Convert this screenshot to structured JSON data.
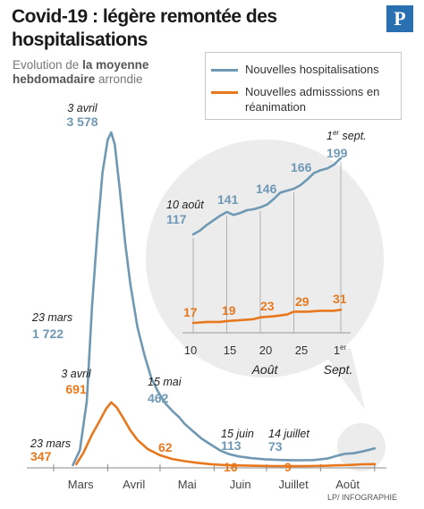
{
  "header": {
    "title": "Covid-19 : légère remontée des hospitalisations",
    "subtitle_prefix": "Evolution de ",
    "subtitle_bold": "la moyenne hebdomadaire",
    "subtitle_suffix": " arrondie",
    "logo": "P",
    "credit": "LP/ INFOGRAPHIE"
  },
  "colors": {
    "hosp": "#6e98b3",
    "rea": "#e8781e",
    "inset_bg": "#ececec",
    "axis": "#555555"
  },
  "legend": {
    "hosp": "Nouvelles hospitalisations",
    "rea": "Nouvelles admisssions en réanimation"
  },
  "chart_data": [
    {
      "type": "line",
      "x_tick_labels": [
        "Mars",
        "Avril",
        "Mai",
        "Juin",
        "Juillet",
        "Août"
      ],
      "ylim": [
        0,
        3700
      ],
      "series": [
        {
          "name": "Nouvelles hospitalisations",
          "x": [
            "2020-03-12",
            "2020-03-16",
            "2020-03-20",
            "2020-03-23",
            "2020-03-26",
            "2020-03-29",
            "2020-04-01",
            "2020-04-03",
            "2020-04-05",
            "2020-04-08",
            "2020-04-11",
            "2020-04-14",
            "2020-04-18",
            "2020-04-22",
            "2020-04-26",
            "2020-04-30",
            "2020-05-04",
            "2020-05-08",
            "2020-05-12",
            "2020-05-15",
            "2020-05-20",
            "2020-05-25",
            "2020-05-30",
            "2020-06-05",
            "2020-06-10",
            "2020-06-15",
            "2020-06-22",
            "2020-06-30",
            "2020-07-07",
            "2020-07-14",
            "2020-07-21",
            "2020-07-28",
            "2020-08-05",
            "2020-08-10",
            "2020-08-15",
            "2020-08-20",
            "2020-08-25",
            "2020-09-01"
          ],
          "values": [
            20,
            180,
            700,
            1722,
            2500,
            3150,
            3500,
            3578,
            3450,
            2950,
            2400,
            1950,
            1500,
            1200,
            950,
            800,
            680,
            600,
            530,
            462,
            380,
            300,
            240,
            170,
            135,
            113,
            95,
            82,
            76,
            73,
            72,
            74,
            90,
            117,
            141,
            146,
            166,
            199
          ]
        },
        {
          "name": "Nouvelles admisssions en réanimation",
          "x": [
            "2020-03-14",
            "2020-03-18",
            "2020-03-23",
            "2020-03-27",
            "2020-03-31",
            "2020-04-03",
            "2020-04-06",
            "2020-04-10",
            "2020-04-14",
            "2020-04-18",
            "2020-04-24",
            "2020-05-01",
            "2020-05-08",
            "2020-05-15",
            "2020-05-22",
            "2020-05-30",
            "2020-06-07",
            "2020-06-15",
            "2020-06-25",
            "2020-07-05",
            "2020-07-14",
            "2020-07-25",
            "2020-08-05",
            "2020-08-10",
            "2020-08-15",
            "2020-08-20",
            "2020-08-25",
            "2020-09-01"
          ],
          "values": [
            30,
            150,
            347,
            480,
            620,
            691,
            640,
            520,
            390,
            290,
            190,
            125,
            85,
            62,
            45,
            30,
            20,
            16,
            12,
            10,
            9,
            10,
            13,
            17,
            19,
            23,
            29,
            31
          ]
        }
      ],
      "annotations": [
        {
          "date": "3 avril",
          "value": "3 578",
          "series": "hosp"
        },
        {
          "date": "23 mars",
          "value": "1 722",
          "series": "hosp"
        },
        {
          "date": "15 mai",
          "value": "462",
          "series": "hosp"
        },
        {
          "date": "15 juin",
          "value": "113",
          "series": "hosp"
        },
        {
          "date": "14 juillet",
          "value": "73",
          "series": "hosp"
        },
        {
          "date": "3 avril",
          "value": "691",
          "series": "rea"
        },
        {
          "date": "23 mars",
          "value": "347",
          "series": "rea"
        },
        {
          "value": "62",
          "series": "rea"
        },
        {
          "value": "16",
          "series": "rea"
        },
        {
          "value": "9",
          "series": "rea"
        }
      ]
    },
    {
      "type": "line",
      "x_tick_labels": [
        "10",
        "15",
        "20",
        "25",
        "1er"
      ],
      "x_axis_labels": [
        "Août",
        "Sept."
      ],
      "series": [
        {
          "name": "Nouvelles hospitalisations",
          "x": [
            "2020-08-10",
            "2020-08-11",
            "2020-08-12",
            "2020-08-13",
            "2020-08-14",
            "2020-08-15",
            "2020-08-16",
            "2020-08-17",
            "2020-08-18",
            "2020-08-19",
            "2020-08-20",
            "2020-08-21",
            "2020-08-22",
            "2020-08-23",
            "2020-08-24",
            "2020-08-25",
            "2020-08-26",
            "2020-08-27",
            "2020-08-28",
            "2020-08-29",
            "2020-08-30",
            "2020-08-31",
            "2020-09-01"
          ],
          "values": [
            117,
            121,
            127,
            132,
            137,
            141,
            138,
            140,
            143,
            144,
            146,
            149,
            155,
            162,
            164,
            166,
            170,
            176,
            183,
            186,
            188,
            192,
            199
          ]
        },
        {
          "name": "Nouvelles admisssions en réanimation",
          "x": [
            "2020-08-10",
            "2020-08-12",
            "2020-08-14",
            "2020-08-15",
            "2020-08-17",
            "2020-08-19",
            "2020-08-20",
            "2020-08-22",
            "2020-08-24",
            "2020-08-25",
            "2020-08-27",
            "2020-08-29",
            "2020-08-31",
            "2020-09-01"
          ],
          "values": [
            17,
            18,
            18,
            19,
            20,
            21,
            23,
            24,
            26,
            29,
            29,
            30,
            30,
            31
          ]
        }
      ],
      "annotations": [
        {
          "date": "10 août",
          "value": "117",
          "series": "hosp"
        },
        {
          "value": "141",
          "series": "hosp"
        },
        {
          "value": "146",
          "series": "hosp"
        },
        {
          "value": "166",
          "series": "hosp"
        },
        {
          "date": "1er sept.",
          "value": "199",
          "series": "hosp"
        },
        {
          "value": "17",
          "series": "rea"
        },
        {
          "value": "19",
          "series": "rea"
        },
        {
          "value": "23",
          "series": "rea"
        },
        {
          "value": "29",
          "series": "rea"
        },
        {
          "value": "31",
          "series": "rea"
        }
      ]
    }
  ]
}
